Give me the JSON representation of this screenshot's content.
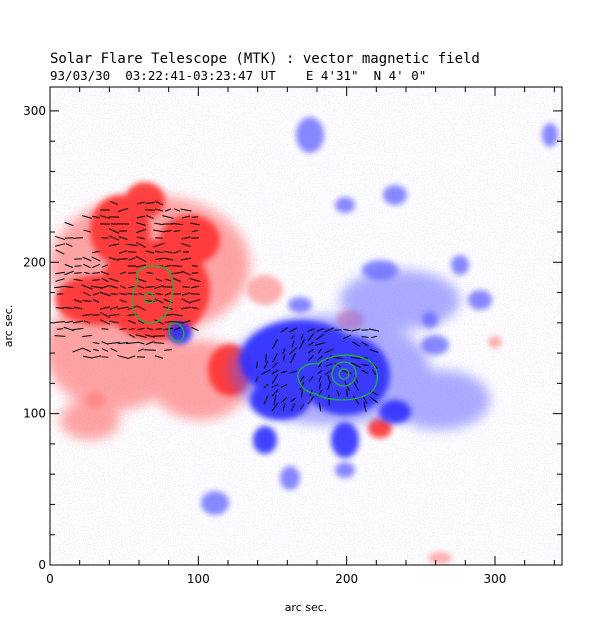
{
  "title": "Solar Flare Telescope (MTK) : vector magnetic field",
  "subtitle": "93/03/30  03:22:41-03:23:47 UT    E 4'31\"  N 4' 0\"",
  "x_axis": {
    "label": "arc sec.",
    "range": [
      0,
      340
    ],
    "ticks": [
      0,
      100,
      200,
      300
    ]
  },
  "y_axis": {
    "label": "arc sec.",
    "range": [
      0,
      300
    ],
    "ticks": [
      0,
      100,
      200,
      300
    ]
  },
  "colors": {
    "positive_polarity": "#ff3b3b",
    "negative_polarity": "#3838ff",
    "contour": "#1db33a",
    "background": "#ffffff"
  }
}
